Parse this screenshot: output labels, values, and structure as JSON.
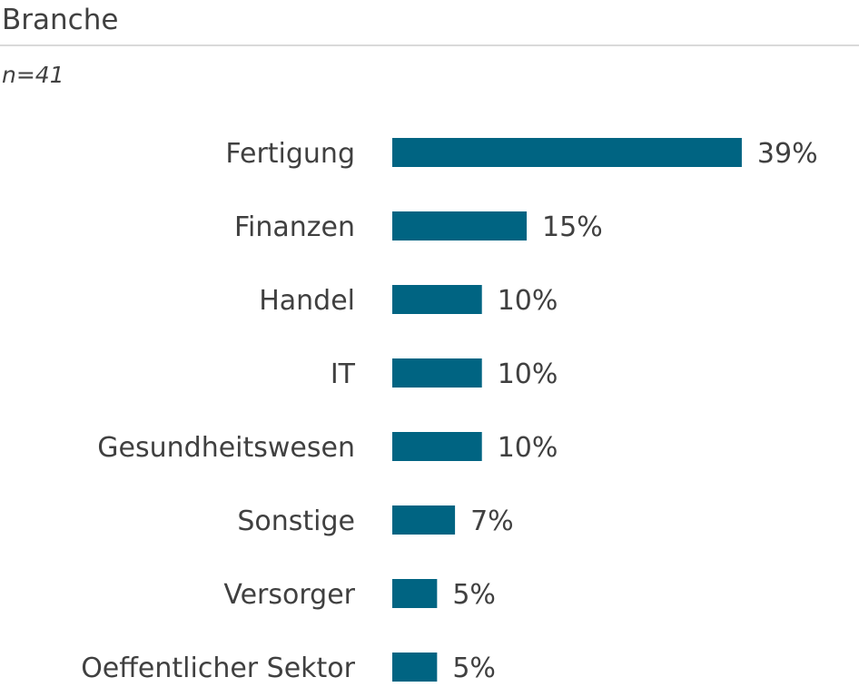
{
  "header": {
    "title": "Branche",
    "subtitle": "n=41"
  },
  "chart_data": {
    "type": "bar",
    "orientation": "horizontal",
    "categories": [
      "Fertigung",
      "Finanzen",
      "Handel",
      "IT",
      "Gesundheitswesen",
      "Sonstige",
      "Versorger",
      "Oeffentlicher Sektor"
    ],
    "values": [
      39,
      15,
      10,
      10,
      10,
      7,
      5,
      5
    ],
    "value_labels": [
      "39%",
      "15%",
      "10%",
      "10%",
      "10%",
      "7%",
      "5%",
      "5%"
    ],
    "unit": "%",
    "bar_color": "#006482",
    "grid": false,
    "legend": "none"
  }
}
